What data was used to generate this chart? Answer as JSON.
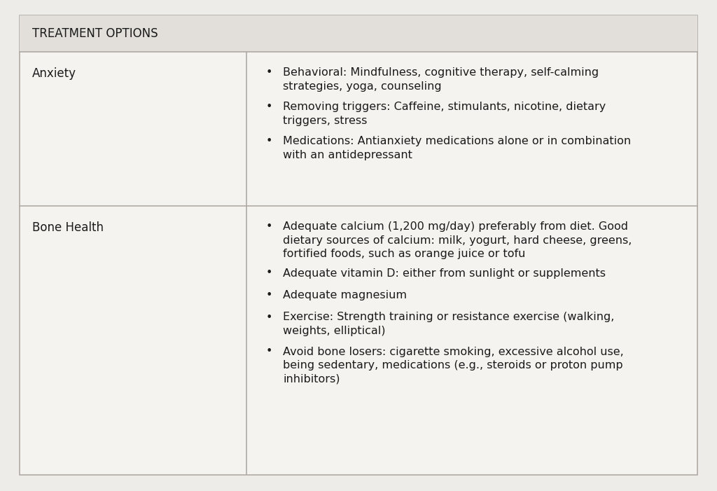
{
  "title": "TREATMENT OPTIONS",
  "background_color": "#eeece8",
  "header_bg": "#e2dfda",
  "cell_bg": "#f5f3f0",
  "border_color": "#b0aaa4",
  "text_color": "#1a1a1a",
  "font_family": "DejaVu Sans",
  "rows": [
    {
      "label": "Anxiety",
      "bullets": [
        "Behavioral: Mindfulness, cognitive therapy, self-calming\nstrategies, yoga, counseling",
        "Removing triggers: Caffeine, stimulants, nicotine, dietary\ntriggers, stress",
        "Medications: Antianxiety medications alone or in combination\nwith an antidepressant"
      ]
    },
    {
      "label": "Bone Health",
      "bullets": [
        "Adequate calcium (1,200 mg/day) preferably from diet. Good\ndietary sources of calcium: milk, yogurt, hard cheese, greens,\nfortified foods, such as orange juice or tofu",
        "Adequate vitamin D: either from sunlight or supplements",
        "Adequate magnesium",
        "Exercise: Strength training or resistance exercise (walking,\nweights, elliptical)",
        "Avoid bone losers: cigarette smoking, excessive alcohol use,\nbeing sedentary, medications (e.g., steroids or proton pump\ninhibitors)"
      ]
    }
  ],
  "title_fontsize": 12,
  "label_fontsize": 12,
  "bullet_fontsize": 11.5
}
